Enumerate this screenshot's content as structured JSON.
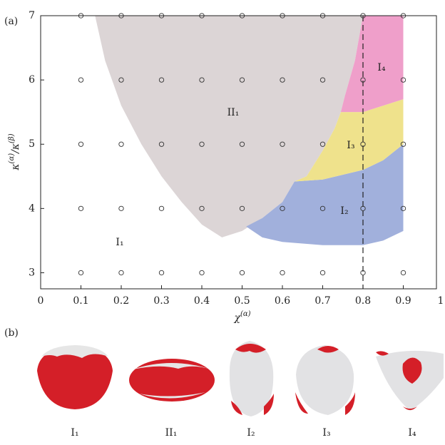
{
  "chart_data": {
    "type": "phase",
    "panel_label": "(a)",
    "x_label": [
      "χ",
      "(α)"
    ],
    "y_label": [
      "κ",
      "(α)",
      "/κ",
      "(β)"
    ],
    "xlim": [
      0,
      1
    ],
    "ylim": [
      2.75,
      7
    ],
    "xticks": [
      0,
      0.1,
      0.2,
      0.3,
      0.4,
      0.5,
      0.6,
      0.7,
      0.8,
      0.9,
      1
    ],
    "yticks": [
      3,
      4,
      5,
      6,
      7
    ],
    "vline": 0.8,
    "regions": [
      {
        "name": "II₁",
        "color": "#dcd5d6",
        "x": [
          0.135,
          0.16,
          0.2,
          0.25,
          0.3,
          0.35,
          0.4,
          0.45,
          0.5,
          0.55,
          0.6,
          0.63,
          0.66,
          0.7,
          0.73,
          0.745,
          0.755,
          0.78,
          0.8
        ],
        "y": [
          7,
          6.3,
          5.6,
          5.0,
          4.5,
          4.1,
          3.75,
          3.55,
          3.65,
          3.85,
          4.1,
          4.42,
          4.5,
          4.9,
          5.25,
          5.5,
          5.75,
          6.3,
          7
        ]
      },
      {
        "name": "I₂",
        "color": "#a1b0dc",
        "x": [
          0.51,
          0.55,
          0.6,
          0.7,
          0.8,
          0.85,
          0.9,
          0.9,
          0.85,
          0.8,
          0.7,
          0.63,
          0.6,
          0.55
        ],
        "y": [
          3.72,
          3.55,
          3.48,
          3.43,
          3.43,
          3.5,
          3.65,
          5.0,
          4.75,
          4.6,
          4.45,
          4.42,
          4.1,
          3.85
        ]
      },
      {
        "name": "I₃",
        "color": "#efe28c",
        "x": [
          0.63,
          0.7,
          0.8,
          0.85,
          0.9,
          0.9,
          0.8,
          0.745,
          0.73,
          0.7,
          0.66
        ],
        "y": [
          4.42,
          4.45,
          4.6,
          4.75,
          5.0,
          5.7,
          5.5,
          5.5,
          5.25,
          4.9,
          4.5
        ]
      },
      {
        "name": "I₄",
        "color": "#ef9fca",
        "x": [
          0.745,
          0.8,
          0.9,
          0.9,
          0.8,
          0.78,
          0.755
        ],
        "y": [
          5.5,
          5.5,
          5.7,
          7,
          7,
          6.3,
          5.75
        ]
      },
      {
        "name": "I₁",
        "color": "#ffffff",
        "x": [],
        "y": []
      }
    ],
    "points": {
      "x": [
        0.1,
        0.2,
        0.3,
        0.4,
        0.5,
        0.6,
        0.7,
        0.8,
        0.9,
        0.1,
        0.2,
        0.3,
        0.4,
        0.5,
        0.6,
        0.7,
        0.8,
        0.9,
        0.1,
        0.2,
        0.3,
        0.4,
        0.5,
        0.6,
        0.7,
        0.8,
        0.9,
        0.1,
        0.2,
        0.3,
        0.4,
        0.5,
        0.6,
        0.7,
        0.8,
        0.9,
        0.1,
        0.2,
        0.3,
        0.4,
        0.5,
        0.6,
        0.7,
        0.8,
        0.9
      ],
      "y": [
        3,
        3,
        3,
        3,
        3,
        3,
        3,
        3,
        3,
        4,
        4,
        4,
        4,
        4,
        4,
        4,
        4,
        4,
        5,
        5,
        5,
        5,
        5,
        5,
        5,
        5,
        5,
        6,
        6,
        6,
        6,
        6,
        6,
        6,
        6,
        6,
        7,
        7,
        7,
        7,
        7,
        7,
        7,
        7,
        7
      ]
    }
  },
  "panel_b": {
    "label": "(b)",
    "shapes": [
      "I₁",
      "II₁",
      "I₂",
      "I₃",
      "I₄"
    ]
  }
}
